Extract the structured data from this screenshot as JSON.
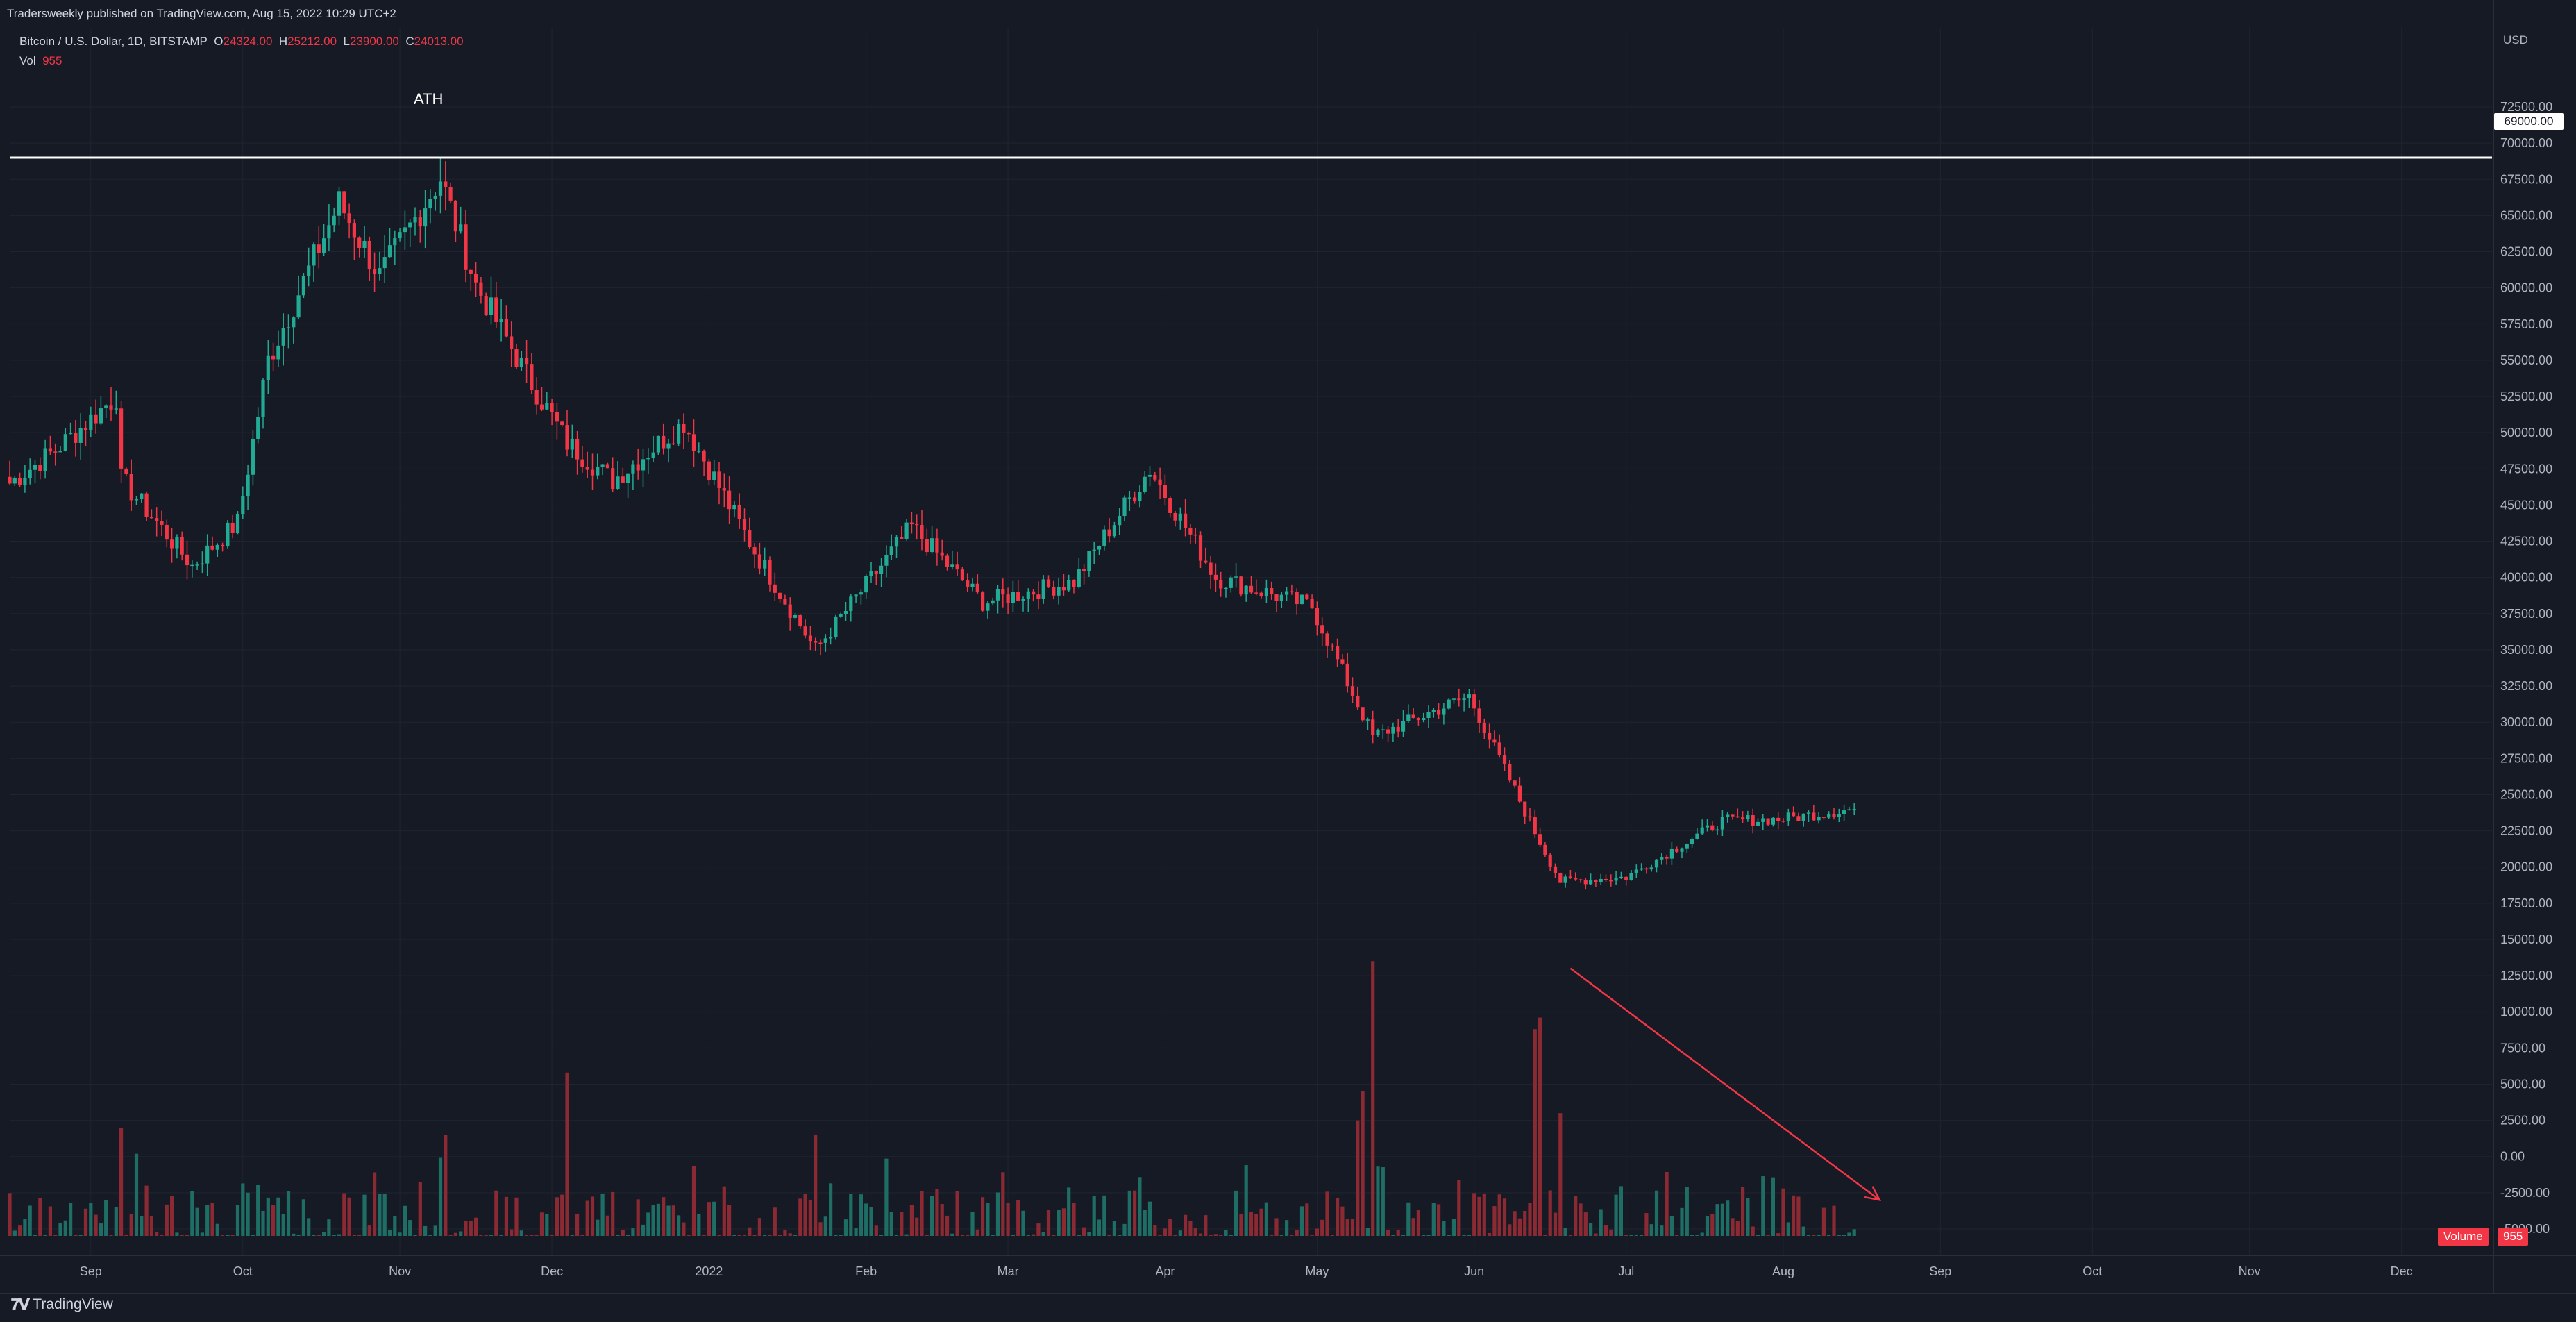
{
  "header": {
    "published": "Tradersweekly published on TradingView.com, Aug 15, 2022 10:29 UTC+2",
    "symbol": "Bitcoin / U.S. Dollar, 1D, BITSTAMP",
    "ohlc": {
      "o_label": "O",
      "o": "24324.00",
      "h_label": "H",
      "h": "25212.00",
      "l_label": "L",
      "l": "23900.00",
      "c_label": "C",
      "c": "24013.00"
    },
    "vol_label": "Vol",
    "vol_value": "955"
  },
  "colors": {
    "up": "#22ab94",
    "down": "#f23645",
    "up_vol": "#1f6e66",
    "down_vol": "#8b2a33",
    "background": "#161a25",
    "grid": "#1f2430",
    "text": "#b2b5be",
    "arrow": "#f23645"
  },
  "footer": {
    "brand": "TradingView",
    "logo": "TV-logo-icon"
  },
  "chart_data": {
    "type": "candlestick",
    "currency": "USD",
    "y_ticks": [
      "72500.00",
      "70000.00",
      "67500.00",
      "65000.00",
      "62500.00",
      "60000.00",
      "57500.00",
      "55000.00",
      "52500.00",
      "50000.00",
      "47500.00",
      "45000.00",
      "42500.00",
      "40000.00",
      "37500.00",
      "35000.00",
      "32500.00",
      "30000.00",
      "27500.00",
      "25000.00",
      "22500.00",
      "20000.00",
      "17500.00",
      "15000.00",
      "12500.00",
      "10000.00",
      "7500.00",
      "5000.00",
      "2500.00",
      "0.00",
      "-2500.00",
      "-5000.00"
    ],
    "x_ticks": [
      "Sep",
      "Oct",
      "Nov",
      "Dec",
      "2022",
      "Feb",
      "Mar",
      "Apr",
      "May",
      "Jun",
      "Jul",
      "Aug",
      "Sep",
      "Oct",
      "Nov",
      "Dec"
    ],
    "ylim": [
      -7000,
      75000
    ],
    "ath": {
      "label": "ATH",
      "price": "69000.00",
      "value": 69000
    },
    "volume_badge": {
      "name": "Volume",
      "value": "955"
    },
    "close_key": [
      [
        "2021-08-16",
        46500
      ],
      [
        "2021-08-25",
        48800
      ],
      [
        "2021-09-06",
        52500
      ],
      [
        "2021-09-07",
        46800
      ],
      [
        "2021-09-21",
        40800
      ],
      [
        "2021-09-30",
        43800
      ],
      [
        "2021-10-06",
        55000
      ],
      [
        "2021-10-20",
        65900
      ],
      [
        "2021-10-28",
        60800
      ],
      [
        "2021-11-09",
        67600
      ],
      [
        "2021-11-16",
        60200
      ],
      [
        "2021-11-26",
        54000
      ],
      [
        "2021-12-04",
        49300
      ],
      [
        "2021-12-13",
        46700
      ],
      [
        "2021-12-27",
        50700
      ],
      [
        "2022-01-10",
        41800
      ],
      [
        "2022-01-22",
        35000
      ],
      [
        "2022-02-10",
        43500
      ],
      [
        "2022-02-24",
        38300
      ],
      [
        "2022-03-14",
        39700
      ],
      [
        "2022-03-29",
        47500
      ],
      [
        "2022-04-11",
        40000
      ],
      [
        "2022-04-30",
        38000
      ],
      [
        "2022-05-12",
        29000
      ],
      [
        "2022-05-31",
        31800
      ],
      [
        "2022-06-13",
        22400
      ],
      [
        "2022-06-18",
        19000
      ],
      [
        "2022-07-01",
        19300
      ],
      [
        "2022-07-20",
        23200
      ],
      [
        "2022-07-31",
        23300
      ],
      [
        "2022-08-15",
        24013
      ]
    ],
    "volume_spikes": [
      [
        "2021-09-07",
        2000
      ],
      [
        "2021-11-10",
        1500
      ],
      [
        "2021-12-04",
        5800
      ],
      [
        "2022-01-22",
        1500
      ],
      [
        "2022-05-09",
        2500
      ],
      [
        "2022-05-10",
        4500
      ],
      [
        "2022-05-12",
        13500
      ],
      [
        "2022-06-13",
        8800
      ],
      [
        "2022-06-14",
        9600
      ],
      [
        "2022-06-18",
        3000
      ]
    ],
    "annotation_arrow": {
      "from": [
        "2022-06-20",
        13000
      ],
      "to": [
        "2022-08-20",
        -3000
      ]
    }
  }
}
